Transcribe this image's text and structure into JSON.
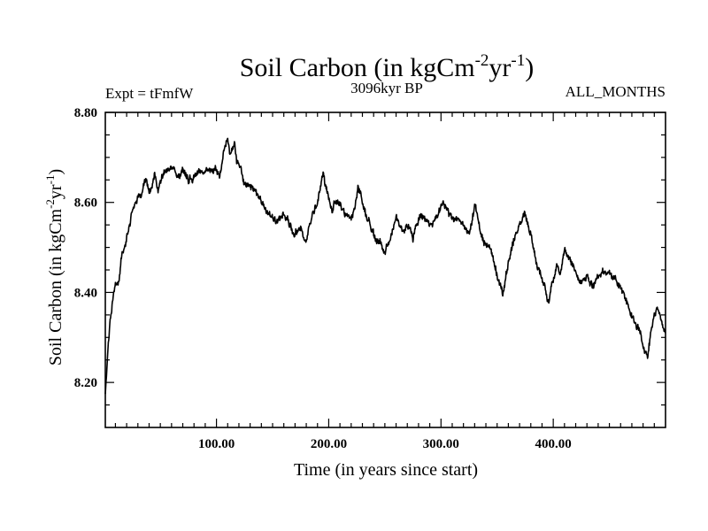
{
  "chart_data": {
    "type": "line",
    "title": {
      "main": "Soil Carbon (in kgCm",
      "sup1": "-2",
      "mid": "yr",
      "sup2": "-1",
      "end": ")"
    },
    "subtitle_left": "Expt = tFmfW",
    "subtitle_center": "3096kyr BP",
    "subtitle_right": "ALL_MONTHS",
    "xlabel": "Time (in years since start)",
    "ylabel": {
      "main": "Soil Carbon (in kgCm",
      "sup1": "-2",
      "mid": "yr",
      "sup2": "-1",
      "end": ")"
    },
    "xlim": [
      1,
      500
    ],
    "ylim": [
      8.1,
      8.8
    ],
    "xticks": [
      100,
      200,
      300,
      400
    ],
    "xtick_labels": [
      "100.00",
      "200.00",
      "300.00",
      "400.00"
    ],
    "yticks": [
      8.2,
      8.4,
      8.6,
      8.8
    ],
    "ytick_labels": [
      "8.20",
      "8.40",
      "8.60",
      "8.80"
    ],
    "line_color": "#000000",
    "series": [
      {
        "name": "Soil Carbon",
        "x": [
          1,
          3,
          5,
          8,
          10,
          13,
          15,
          18,
          20,
          23,
          25,
          28,
          30,
          33,
          35,
          38,
          40,
          43,
          45,
          48,
          50,
          55,
          60,
          65,
          70,
          75,
          80,
          85,
          90,
          95,
          100,
          103,
          106,
          108,
          110,
          112,
          114,
          116,
          118,
          120,
          123,
          126,
          130,
          135,
          140,
          145,
          150,
          155,
          160,
          165,
          170,
          175,
          178,
          180,
          183,
          185,
          190,
          195,
          200,
          203,
          206,
          210,
          215,
          220,
          223,
          226,
          230,
          235,
          240,
          245,
          250,
          255,
          260,
          265,
          270,
          275,
          280,
          285,
          290,
          295,
          300,
          303,
          306,
          310,
          315,
          320,
          323,
          326,
          330,
          335,
          340,
          345,
          347,
          350,
          355,
          360,
          365,
          370,
          375,
          380,
          385,
          390,
          393,
          396,
          400,
          403,
          406,
          410,
          415,
          420,
          425,
          430,
          435,
          440,
          445,
          450,
          455,
          460,
          465,
          470,
          475,
          478,
          481,
          484,
          487,
          490,
          493,
          496,
          500
        ],
        "values": [
          8.17,
          8.26,
          8.33,
          8.39,
          8.41,
          8.42,
          8.47,
          8.5,
          8.52,
          8.55,
          8.58,
          8.6,
          8.62,
          8.61,
          8.64,
          8.65,
          8.62,
          8.64,
          8.66,
          8.63,
          8.65,
          8.67,
          8.68,
          8.66,
          8.67,
          8.65,
          8.66,
          8.67,
          8.66,
          8.68,
          8.67,
          8.66,
          8.7,
          8.73,
          8.74,
          8.71,
          8.72,
          8.73,
          8.69,
          8.68,
          8.66,
          8.64,
          8.63,
          8.62,
          8.6,
          8.58,
          8.57,
          8.56,
          8.57,
          8.55,
          8.53,
          8.55,
          8.52,
          8.51,
          8.55,
          8.57,
          8.6,
          8.67,
          8.6,
          8.58,
          8.6,
          8.59,
          8.57,
          8.56,
          8.58,
          8.63,
          8.6,
          8.56,
          8.53,
          8.51,
          8.49,
          8.53,
          8.56,
          8.54,
          8.55,
          8.52,
          8.56,
          8.57,
          8.55,
          8.56,
          8.59,
          8.6,
          8.58,
          8.56,
          8.57,
          8.55,
          8.53,
          8.54,
          8.6,
          8.53,
          8.51,
          8.49,
          8.47,
          8.44,
          8.4,
          8.46,
          8.52,
          8.55,
          8.57,
          8.53,
          8.47,
          8.43,
          8.41,
          8.38,
          8.43,
          8.46,
          8.44,
          8.5,
          8.48,
          8.45,
          8.42,
          8.44,
          8.41,
          8.43,
          8.45,
          8.44,
          8.43,
          8.41,
          8.38,
          8.35,
          8.33,
          8.31,
          8.28,
          8.26,
          8.32,
          8.35,
          8.37,
          8.34,
          8.31
        ]
      }
    ]
  }
}
